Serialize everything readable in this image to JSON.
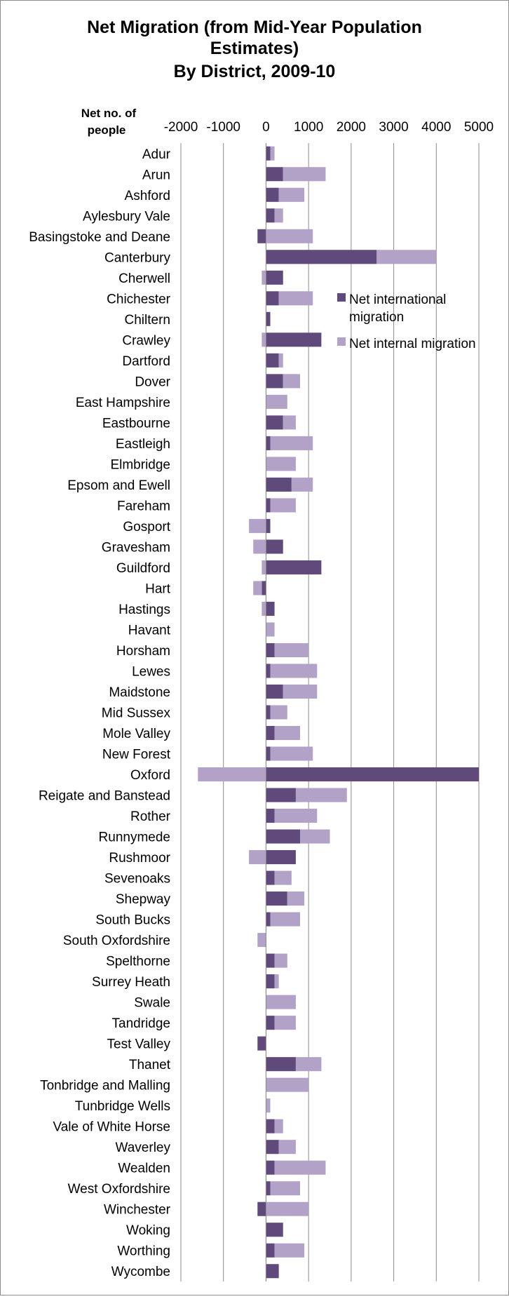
{
  "chart_data": {
    "type": "bar",
    "orientation": "horizontal",
    "stacked": true,
    "title_lines": [
      "Net Migration (from Mid-Year Population",
      "Estimates)",
      "By District, 2009-10"
    ],
    "axis_label_lines": [
      "Net no. of",
      "people"
    ],
    "xlim": [
      -2000,
      5000
    ],
    "x_ticks": [
      -2000,
      -1000,
      0,
      1000,
      2000,
      3000,
      4000,
      5000
    ],
    "grid": "vertical",
    "legend_position": "right",
    "categories": [
      "Adur",
      "Arun",
      "Ashford",
      "Aylesbury Vale",
      "Basingstoke and Deane",
      "Canterbury",
      "Cherwell",
      "Chichester",
      "Chiltern",
      "Crawley",
      "Dartford",
      "Dover",
      "East Hampshire",
      "Eastbourne",
      "Eastleigh",
      "Elmbridge",
      "Epsom and Ewell",
      "Fareham",
      "Gosport",
      "Gravesham",
      "Guildford",
      "Hart",
      "Hastings",
      "Havant",
      "Horsham",
      "Lewes",
      "Maidstone",
      "Mid Sussex",
      "Mole Valley",
      "New Forest",
      "Oxford",
      "Reigate and Banstead",
      "Rother",
      "Runnymede",
      "Rushmoor",
      "Sevenoaks",
      "Shepway",
      "South Bucks",
      "South Oxfordshire",
      "Spelthorne",
      "Surrey Heath",
      "Swale",
      "Tandridge",
      "Test Valley",
      "Thanet",
      "Tonbridge and Malling",
      "Tunbridge Wells",
      "Vale of White Horse",
      "Waverley",
      "Wealden",
      "West Oxfordshire",
      "Winchester",
      "Woking",
      "Worthing",
      "Wycombe"
    ],
    "series": [
      {
        "name": "Net international migration",
        "color": "#604a7b",
        "values": [
          100,
          400,
          300,
          200,
          -200,
          2600,
          400,
          300,
          100,
          1300,
          300,
          400,
          0,
          400,
          100,
          0,
          600,
          100,
          100,
          400,
          1300,
          -100,
          200,
          0,
          200,
          100,
          400,
          100,
          200,
          100,
          5000,
          700,
          200,
          800,
          700,
          200,
          500,
          100,
          0,
          200,
          200,
          0,
          200,
          -200,
          700,
          0,
          0,
          200,
          300,
          200,
          100,
          -200,
          400,
          200,
          300
        ]
      },
      {
        "name": "Net internal migration",
        "color": "#b3a2c7",
        "values": [
          100,
          1000,
          600,
          200,
          1100,
          1400,
          -100,
          800,
          0,
          -100,
          100,
          400,
          500,
          300,
          1000,
          700,
          500,
          600,
          -400,
          -300,
          -100,
          -200,
          -100,
          200,
          800,
          1100,
          800,
          400,
          600,
          1000,
          -1600,
          1200,
          1000,
          700,
          -400,
          400,
          400,
          700,
          -200,
          300,
          100,
          700,
          500,
          0,
          600,
          1000,
          100,
          200,
          400,
          1200,
          700,
          1000,
          0,
          700,
          0
        ]
      }
    ]
  }
}
